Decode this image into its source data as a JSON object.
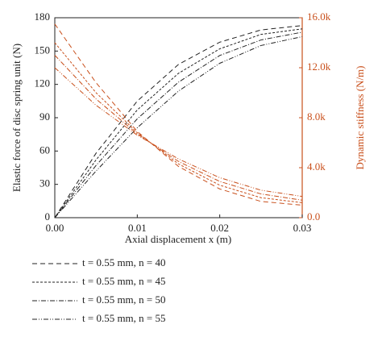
{
  "chart_data": {
    "type": "line",
    "x_label": "Axial displacement x (m)",
    "y_label": "Elastic force of disc spring unit (N)",
    "y2_label": "Dynamic stiffness (N/m)",
    "x": [
      0,
      0.005,
      0.01,
      0.015,
      0.02,
      0.025,
      0.03
    ],
    "xlim": [
      0,
      0.03
    ],
    "xticks": [
      {
        "value": 0,
        "label": "0.00"
      },
      {
        "value": 0.01,
        "label": "0.01"
      },
      {
        "value": 0.02,
        "label": "0.02"
      },
      {
        "value": 0.03,
        "label": "0.03"
      }
    ],
    "ylim": [
      0,
      180
    ],
    "yticks": [
      0,
      30,
      60,
      90,
      120,
      150,
      180
    ],
    "y2lim": [
      0,
      16000
    ],
    "y2ticks": [
      {
        "value": 0,
        "label": "0.0"
      },
      {
        "value": 4000,
        "label": "4.0k"
      },
      {
        "value": 8000,
        "label": "8.0k"
      },
      {
        "value": 12000,
        "label": "12.0k"
      },
      {
        "value": 16000,
        "label": "16.0k"
      }
    ],
    "y2_color": "#c9501c",
    "series": [
      {
        "name": "t = 0.55 mm, n = 40",
        "color": "#222222",
        "dash": "6,4",
        "values": [
          0,
          58,
          105,
          138,
          158,
          169,
          173
        ]
      },
      {
        "name": "t = 0.55 mm, n = 45",
        "color": "#222222",
        "dash": "3,2",
        "values": [
          0,
          52,
          97,
          130,
          152,
          165,
          170
        ]
      },
      {
        "name": "t = 0.55 mm, n = 50",
        "color": "#222222",
        "dash": "6,2,1,2",
        "values": [
          0,
          47,
          89,
          122,
          146,
          160,
          167
        ]
      },
      {
        "name": "t = 0.55 mm, n = 55",
        "color": "#222222",
        "dash": "6,2,1,2,1,2",
        "values": [
          0,
          42,
          81,
          114,
          139,
          155,
          163
        ]
      },
      {
        "color": "#c9501c",
        "dash": "6,4",
        "axis": "y2",
        "values": [
          15500,
          10800,
          6900,
          4100,
          2300,
          1300,
          1000
        ]
      },
      {
        "color": "#c9501c",
        "dash": "3,2",
        "axis": "y2",
        "values": [
          14000,
          10000,
          6800,
          4300,
          2600,
          1600,
          1200
        ]
      },
      {
        "color": "#c9501c",
        "dash": "6,2,1,2",
        "axis": "y2",
        "values": [
          13000,
          9500,
          6700,
          4500,
          2900,
          1900,
          1400
        ]
      },
      {
        "color": "#c9501c",
        "dash": "6,2,1,2,1,2",
        "axis": "y2",
        "values": [
          12000,
          9000,
          6600,
          4700,
          3200,
          2200,
          1700
        ]
      }
    ]
  }
}
